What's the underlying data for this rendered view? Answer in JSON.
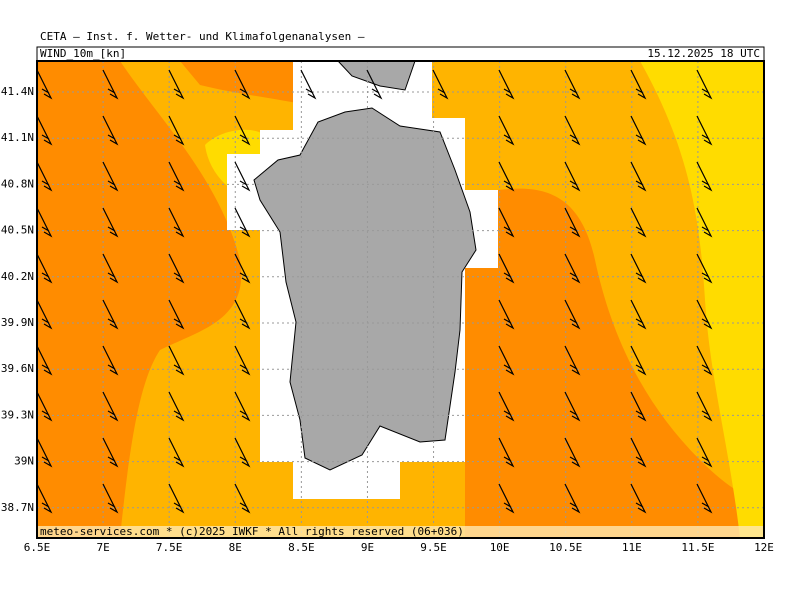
{
  "header": {
    "title": "CETA — Inst. f. Wetter- und Klimafolgenanalysen —",
    "variable": "WIND_10m_[kn]",
    "valid_time": "15.12.2025 18 UTC"
  },
  "axes": {
    "lat_labels": [
      "41.4N",
      "41.1N",
      "40.8N",
      "40.5N",
      "40.2N",
      "39.9N",
      "39.6N",
      "39.3N",
      "39N",
      "38.7N"
    ],
    "lon_labels": [
      "6.5E",
      "7E",
      "7.5E",
      "8E",
      "8.5E",
      "9E",
      "9.5E",
      "10E",
      "10.5E",
      "11E",
      "11.5E",
      "12E"
    ]
  },
  "footer": "meteo-services.com * (c)2025 IWKF * All rights reserved (06+036)"
}
